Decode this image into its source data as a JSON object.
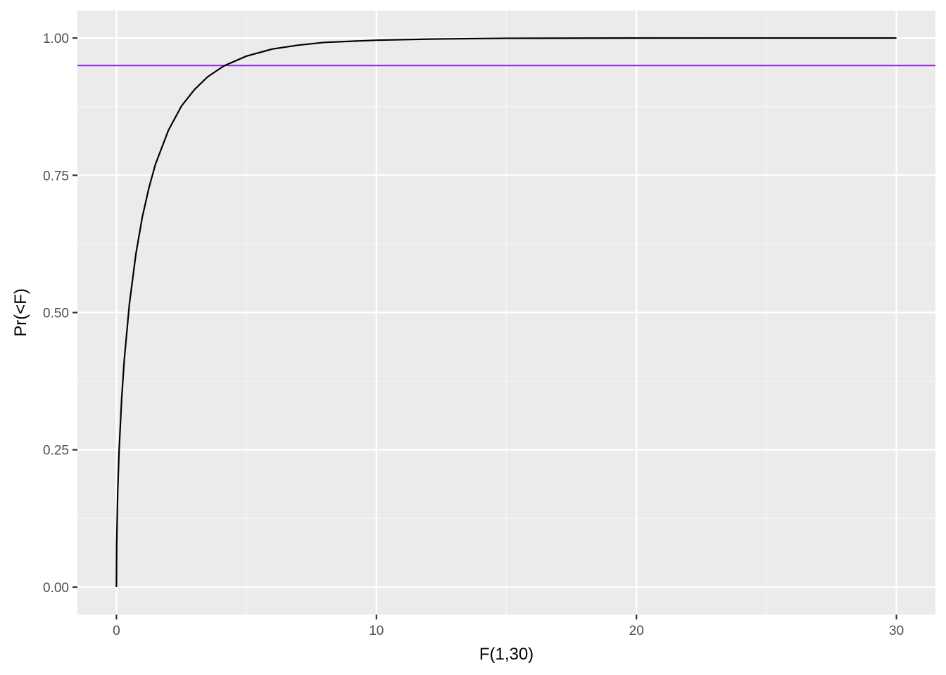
{
  "chart_data": {
    "type": "line",
    "title": "",
    "xlabel": "F(1,30)",
    "ylabel": "Pr(<F)",
    "xlim": [
      -1.5,
      31.5
    ],
    "ylim": [
      -0.05,
      1.05
    ],
    "x_ticks": [
      0,
      10,
      20,
      30
    ],
    "x_tick_labels": [
      "0",
      "10",
      "20",
      "30"
    ],
    "x_minor_ticks": [
      5,
      15,
      25
    ],
    "y_ticks": [
      0,
      0.25,
      0.5,
      0.75,
      1.0
    ],
    "y_tick_labels": [
      "0.00",
      "0.25",
      "0.50",
      "0.75",
      "1.00"
    ],
    "y_minor_ticks": [
      0.125,
      0.375,
      0.625,
      0.875
    ],
    "grid": true,
    "series": [
      {
        "color": "#000000",
        "x": [
          0,
          0.01,
          0.05,
          0.1,
          0.2,
          0.3,
          0.5,
          0.75,
          1,
          1.25,
          1.5,
          2,
          2.5,
          3,
          3.5,
          4,
          4.17,
          5,
          6,
          7,
          8,
          10,
          12,
          15,
          20,
          25,
          30
        ],
        "y": [
          0,
          0.079,
          0.175,
          0.246,
          0.342,
          0.413,
          0.516,
          0.607,
          0.675,
          0.727,
          0.77,
          0.832,
          0.876,
          0.906,
          0.929,
          0.945,
          0.95,
          0.967,
          0.98,
          0.987,
          0.992,
          0.996,
          0.998,
          0.9995,
          0.9999,
          1.0,
          1.0
        ]
      }
    ],
    "hlines": [
      {
        "y": 0.95,
        "color": "#9B30E0"
      }
    ],
    "colors": {
      "panel_background": "#EBEBEB",
      "grid_major": "#FFFFFF",
      "grid_minor": "#F5F5F5"
    }
  }
}
